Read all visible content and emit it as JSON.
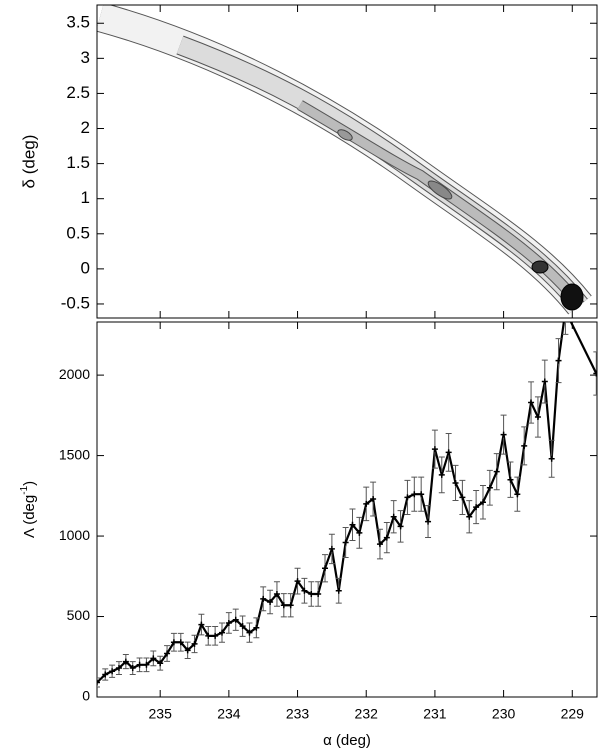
{
  "chart_data": [
    {
      "type": "density",
      "ylabel": "δ (deg)",
      "xlim": [
        235.92,
        228.64
      ],
      "xticks": [
        235,
        234,
        233,
        232,
        231,
        230,
        229
      ],
      "ylim": [
        -0.7,
        3.76
      ],
      "yticks": [
        -0.5,
        0,
        0.5,
        1,
        1.5,
        2,
        2.5,
        3,
        3.5
      ]
    },
    {
      "type": "errorline",
      "xlabel": "α (deg)",
      "ylabel": [
        "Λ (deg",
        "-1",
        ")"
      ],
      "color": "#000000",
      "xlim": [
        235.92,
        228.64
      ],
      "xticks": [
        235,
        234,
        233,
        232,
        231,
        230,
        229
      ],
      "ylim": [
        0,
        2330
      ],
      "yticks": [
        0,
        500,
        1000,
        1500,
        2000
      ],
      "x": [
        235.92,
        235.8,
        235.7,
        235.6,
        235.5,
        235.4,
        235.3,
        235.2,
        235.1,
        235.0,
        234.9,
        234.8,
        234.7,
        234.6,
        234.5,
        234.4,
        234.3,
        234.2,
        234.1,
        234.0,
        233.9,
        233.8,
        233.7,
        233.6,
        233.5,
        233.4,
        233.3,
        233.2,
        233.1,
        233.0,
        232.9,
        232.8,
        232.7,
        232.6,
        232.5,
        232.4,
        232.3,
        232.2,
        232.1,
        232.0,
        231.9,
        231.8,
        231.7,
        231.6,
        231.5,
        231.4,
        231.3,
        231.2,
        231.1,
        231.0,
        230.9,
        230.8,
        230.7,
        230.6,
        230.5,
        230.4,
        230.3,
        230.2,
        230.1,
        230.0,
        229.9,
        229.8,
        229.7,
        229.6,
        229.5,
        229.4,
        229.3,
        229.2,
        229.1,
        228.65
      ],
      "values": [
        90,
        140,
        160,
        180,
        220,
        180,
        200,
        200,
        240,
        210,
        270,
        340,
        340,
        290,
        330,
        450,
        380,
        380,
        400,
        460,
        480,
        440,
        400,
        430,
        610,
        590,
        640,
        570,
        570,
        720,
        660,
        640,
        640,
        800,
        920,
        660,
        960,
        1070,
        1020,
        1200,
        1230,
        950,
        990,
        1120,
        1060,
        1240,
        1260,
        1260,
        1090,
        1540,
        1380,
        1520,
        1330,
        1240,
        1120,
        1180,
        1210,
        1300,
        1400,
        1630,
        1350,
        1260,
        1560,
        1830,
        1740,
        1960,
        1480,
        2090,
        2400,
        2010
      ],
      "errors": [
        28,
        35,
        38,
        40,
        44,
        40,
        42,
        42,
        46,
        43,
        49,
        55,
        55,
        51,
        54,
        64,
        58,
        58,
        60,
        64,
        66,
        63,
        60,
        62,
        74,
        73,
        76,
        72,
        72,
        80,
        77,
        76,
        76,
        85,
        91,
        77,
        93,
        98,
        96,
        104,
        105,
        92,
        94,
        100,
        98,
        106,
        106,
        106,
        99,
        118,
        111,
        117,
        109,
        106,
        100,
        103,
        104,
        108,
        112,
        121,
        110,
        106,
        118,
        128,
        125,
        133,
        115,
        137,
        147,
        134
      ]
    }
  ]
}
